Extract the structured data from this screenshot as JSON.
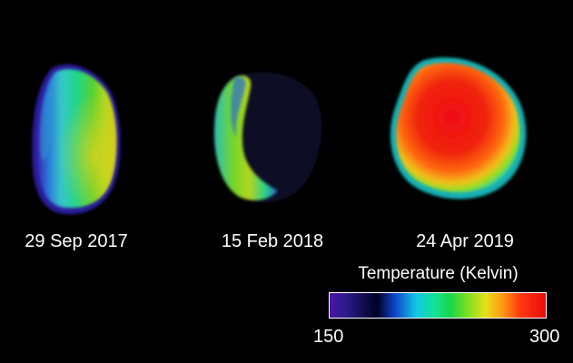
{
  "observations": [
    {
      "date": "29 Sep 2017"
    },
    {
      "date": "15 Feb 2018"
    },
    {
      "date": "24 Apr 2019"
    }
  ],
  "color_scale": {
    "title": "Temperature (Kelvin)",
    "min": "150",
    "max": "300",
    "colors": [
      "#4b16a8",
      "#000024",
      "#1042c8",
      "#12c6e6",
      "#18d64a",
      "#e6e01a",
      "#ff9a14",
      "#e80c0c"
    ]
  }
}
